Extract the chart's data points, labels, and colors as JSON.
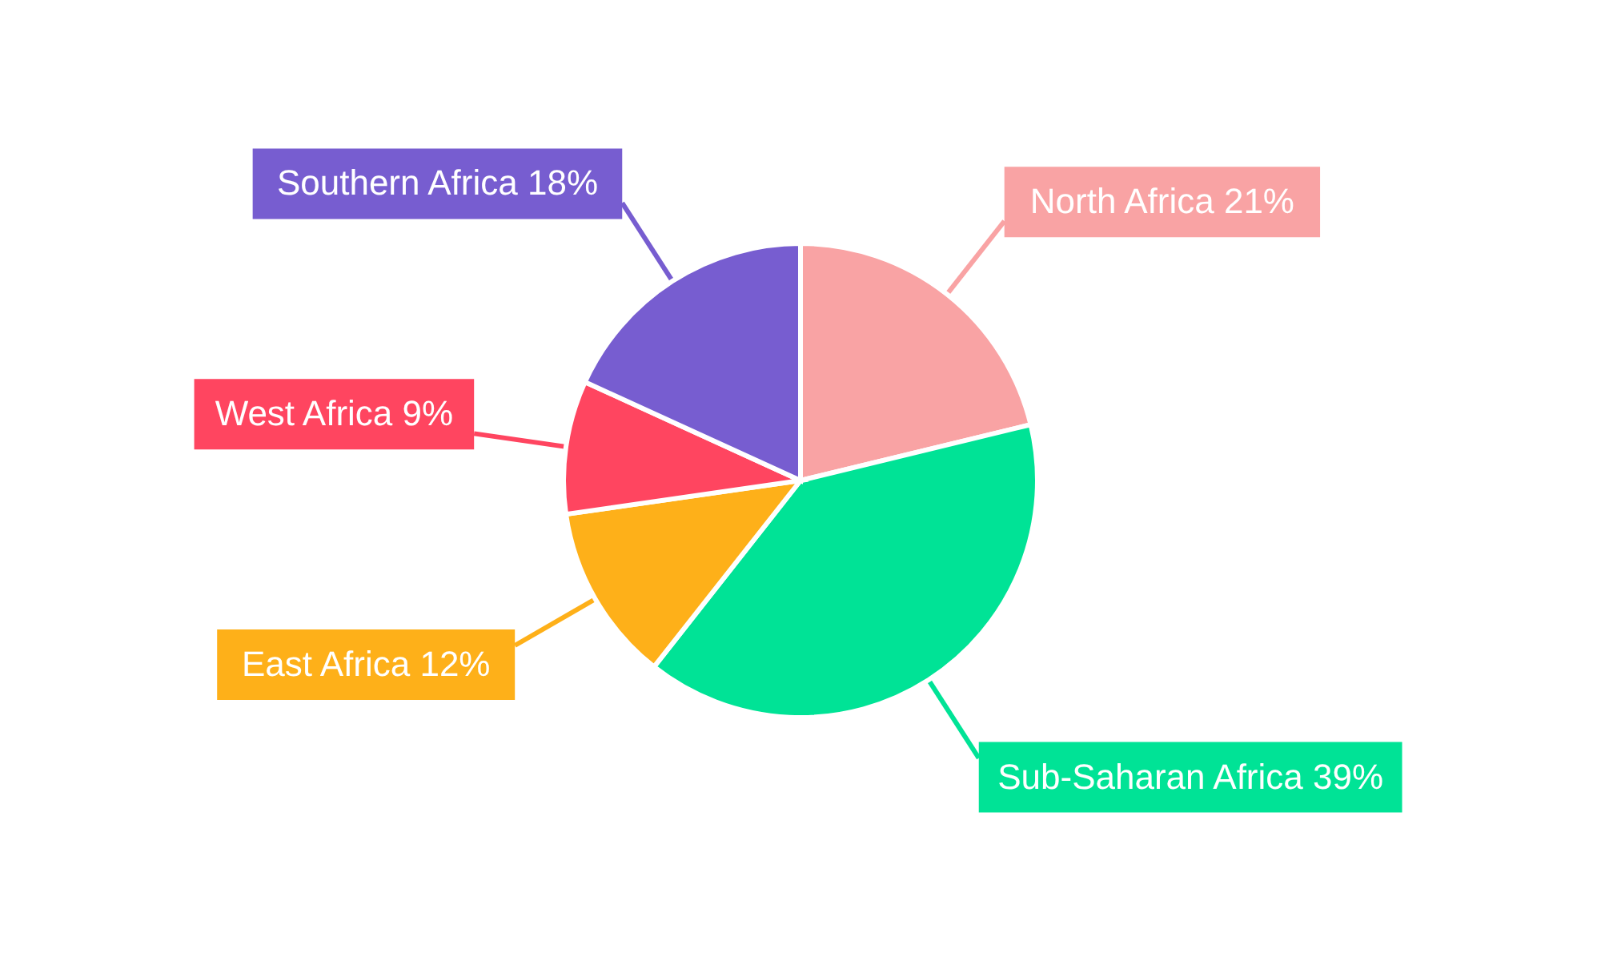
{
  "chart_data": {
    "type": "pie",
    "categories": [
      "North Africa",
      "Sub-Saharan Africa",
      "East Africa",
      "West Africa",
      "Southern Africa"
    ],
    "values": [
      21,
      39,
      12,
      9,
      18
    ],
    "value_labels": [
      "21%",
      "39%",
      "12%",
      "9%",
      "18%"
    ],
    "colors": [
      "#f9a3a4",
      "#00e396",
      "#feb019",
      "#ff4560",
      "#775dd0"
    ]
  }
}
